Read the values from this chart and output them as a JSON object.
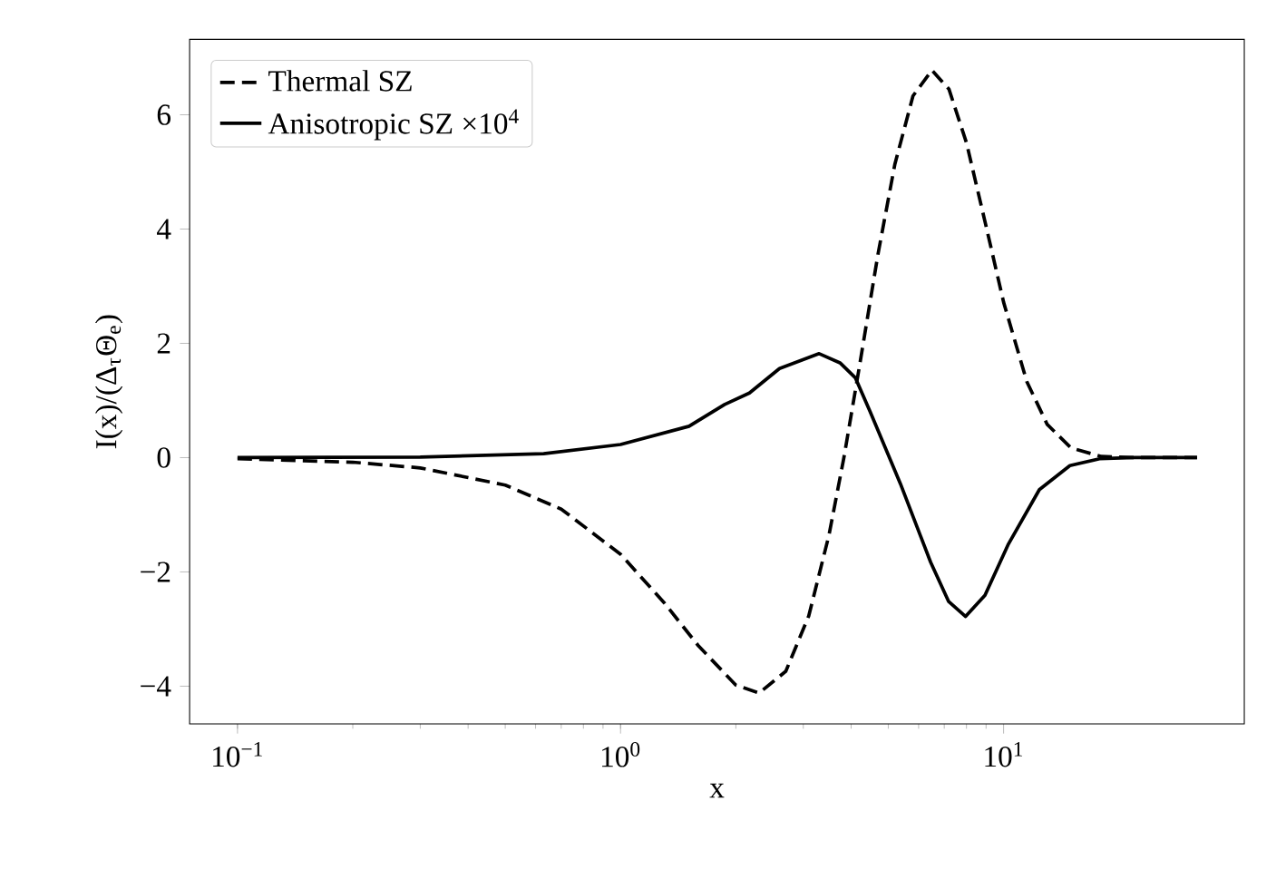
{
  "chart_data": {
    "type": "line",
    "xlabel": "x",
    "ylabel": "I(x)/(Δ$_{τ}$Θ$_{e}$)",
    "log": "x",
    "legend": "top left",
    "xlim": [
      0.075,
      42.5
    ],
    "ylim": [
      -4.66,
      7.32
    ],
    "xticks": [
      {
        "value": 0.1,
        "label": "10$^{−1}$"
      },
      {
        "value": 1,
        "label": "10$^{0}$"
      },
      {
        "value": 10,
        "label": "10$^{1}$"
      }
    ],
    "yticks": [
      {
        "value": -4,
        "label": "−4"
      },
      {
        "value": -2,
        "label": "−2"
      },
      0,
      2,
      4,
      6
    ],
    "series": [
      {
        "name": "Thermal SZ",
        "color": "#000000",
        "line_style": "dashed",
        "x": [
          0.1,
          0.2,
          0.3,
          0.5,
          0.7,
          1,
          1.3,
          1.6,
          2,
          2.3,
          2.7,
          3.1,
          3.5,
          3.83,
          4.2,
          4.7,
          5.2,
          5.8,
          6.5,
          7.2,
          8,
          9,
          10,
          11.5,
          13,
          15,
          18,
          22,
          32
        ],
        "values": [
          -0.02,
          -0.08,
          -0.18,
          -0.48,
          -0.9,
          -1.69,
          -2.54,
          -3.3,
          -3.98,
          -4.12,
          -3.74,
          -2.77,
          -1.36,
          0,
          1.58,
          3.56,
          5.13,
          6.33,
          6.78,
          6.45,
          5.51,
          4.05,
          2.72,
          1.33,
          0.58,
          0.17,
          0.02,
          0,
          0
        ]
      },
      {
        "name": "Anisotropic SZ ×10$^{4}$",
        "color": "#000000",
        "line_style": "solid",
        "x": [
          0.1,
          0.3,
          0.63,
          1,
          1.51,
          1.87,
          2.17,
          2.6,
          3.3,
          3.74,
          4.1,
          4.48,
          5.38,
          6.45,
          7.19,
          7.96,
          8.94,
          10.3,
          12.4,
          14.9,
          17.8,
          22,
          32
        ],
        "values": [
          0,
          0.01,
          0.07,
          0.23,
          0.55,
          0.93,
          1.13,
          1.56,
          1.82,
          1.66,
          1.4,
          0.81,
          -0.46,
          -1.83,
          -2.52,
          -2.78,
          -2.41,
          -1.51,
          -0.56,
          -0.14,
          -0.02,
          0,
          0
        ]
      }
    ]
  }
}
